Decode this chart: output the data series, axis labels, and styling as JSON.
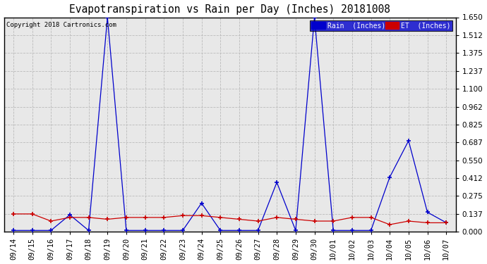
{
  "title": "Evapotranspiration vs Rain per Day (Inches) 20181008",
  "copyright": "Copyright 2018 Cartronics.com",
  "legend_rain": "Rain  (Inches)",
  "legend_et": "ET  (Inches)",
  "rain_color": "#0000cc",
  "et_color": "#cc0000",
  "background_color": "#ffffff",
  "plot_bg_color": "#e8e8e8",
  "grid_color": "#bbbbbb",
  "ylim": [
    0,
    1.65
  ],
  "yticks": [
    0.0,
    0.137,
    0.275,
    0.412,
    0.55,
    0.687,
    0.825,
    0.962,
    1.1,
    1.237,
    1.375,
    1.512,
    1.65
  ],
  "dates": [
    "09/14",
    "09/15",
    "09/16",
    "09/17",
    "09/18",
    "09/19",
    "09/20",
    "09/21",
    "09/22",
    "09/23",
    "09/24",
    "09/25",
    "09/26",
    "09/27",
    "09/28",
    "09/29",
    "09/30",
    "10/01",
    "10/02",
    "10/03",
    "10/04",
    "10/05",
    "10/06",
    "10/07"
  ],
  "rain": [
    0.01,
    0.01,
    0.01,
    0.13,
    0.01,
    1.65,
    0.01,
    0.01,
    0.01,
    0.01,
    0.22,
    0.01,
    0.01,
    0.01,
    0.38,
    0.01,
    1.65,
    0.01,
    0.01,
    0.01,
    0.42,
    0.7,
    0.15,
    0.07
  ],
  "et": [
    0.137,
    0.137,
    0.082,
    0.11,
    0.11,
    0.096,
    0.11,
    0.11,
    0.11,
    0.124,
    0.124,
    0.11,
    0.096,
    0.082,
    0.11,
    0.096,
    0.082,
    0.082,
    0.11,
    0.11,
    0.055,
    0.082,
    0.069,
    0.069
  ]
}
